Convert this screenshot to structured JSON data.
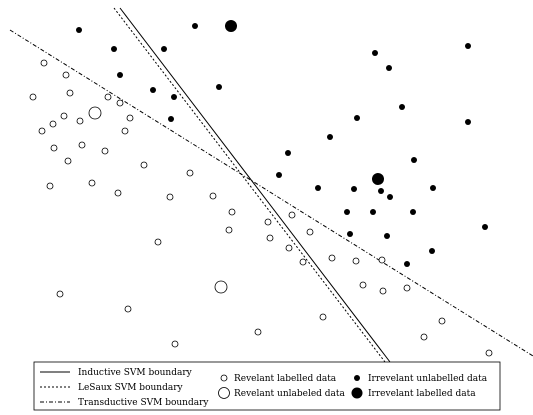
{
  "legend": {
    "inductive_label": "Inductive SVM boundary",
    "lesaux_label": "LeSaux SVM boundary",
    "transductive_label": "Transductive SVM boundary",
    "relevant_labelled_label": "Revelant labelled data",
    "relevant_unlabelled_label": "Revelant unlabeled data",
    "irrelevant_unlabelled_label": "Irrevelant unlabelled data",
    "irrelevant_labelled_label": "Irrevelant labelled data"
  },
  "colors": {
    "stroke": "#000000",
    "background": "#ffffff"
  }
}
